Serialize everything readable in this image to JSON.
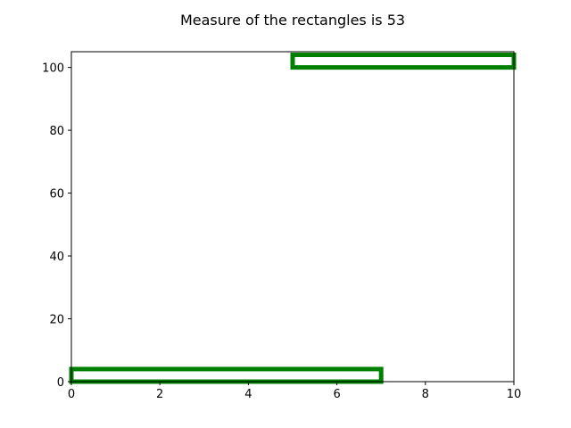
{
  "chart_data": {
    "type": "rectangles",
    "title": "Measure of the rectangles is 53",
    "xlim": [
      0,
      10
    ],
    "ylim": [
      0,
      105
    ],
    "xticks": [
      0,
      2,
      4,
      6,
      8,
      10
    ],
    "yticks": [
      0,
      20,
      40,
      60,
      80,
      100
    ],
    "grid": false,
    "rectangles": [
      {
        "x": 0,
        "y": 0,
        "width": 7,
        "height": 4,
        "edge_color": "#008000",
        "face_color": "#ffffff"
      },
      {
        "x": 5,
        "y": 100,
        "width": 5,
        "height": 4,
        "edge_color": "#008000",
        "face_color": "#ffffff"
      }
    ]
  }
}
